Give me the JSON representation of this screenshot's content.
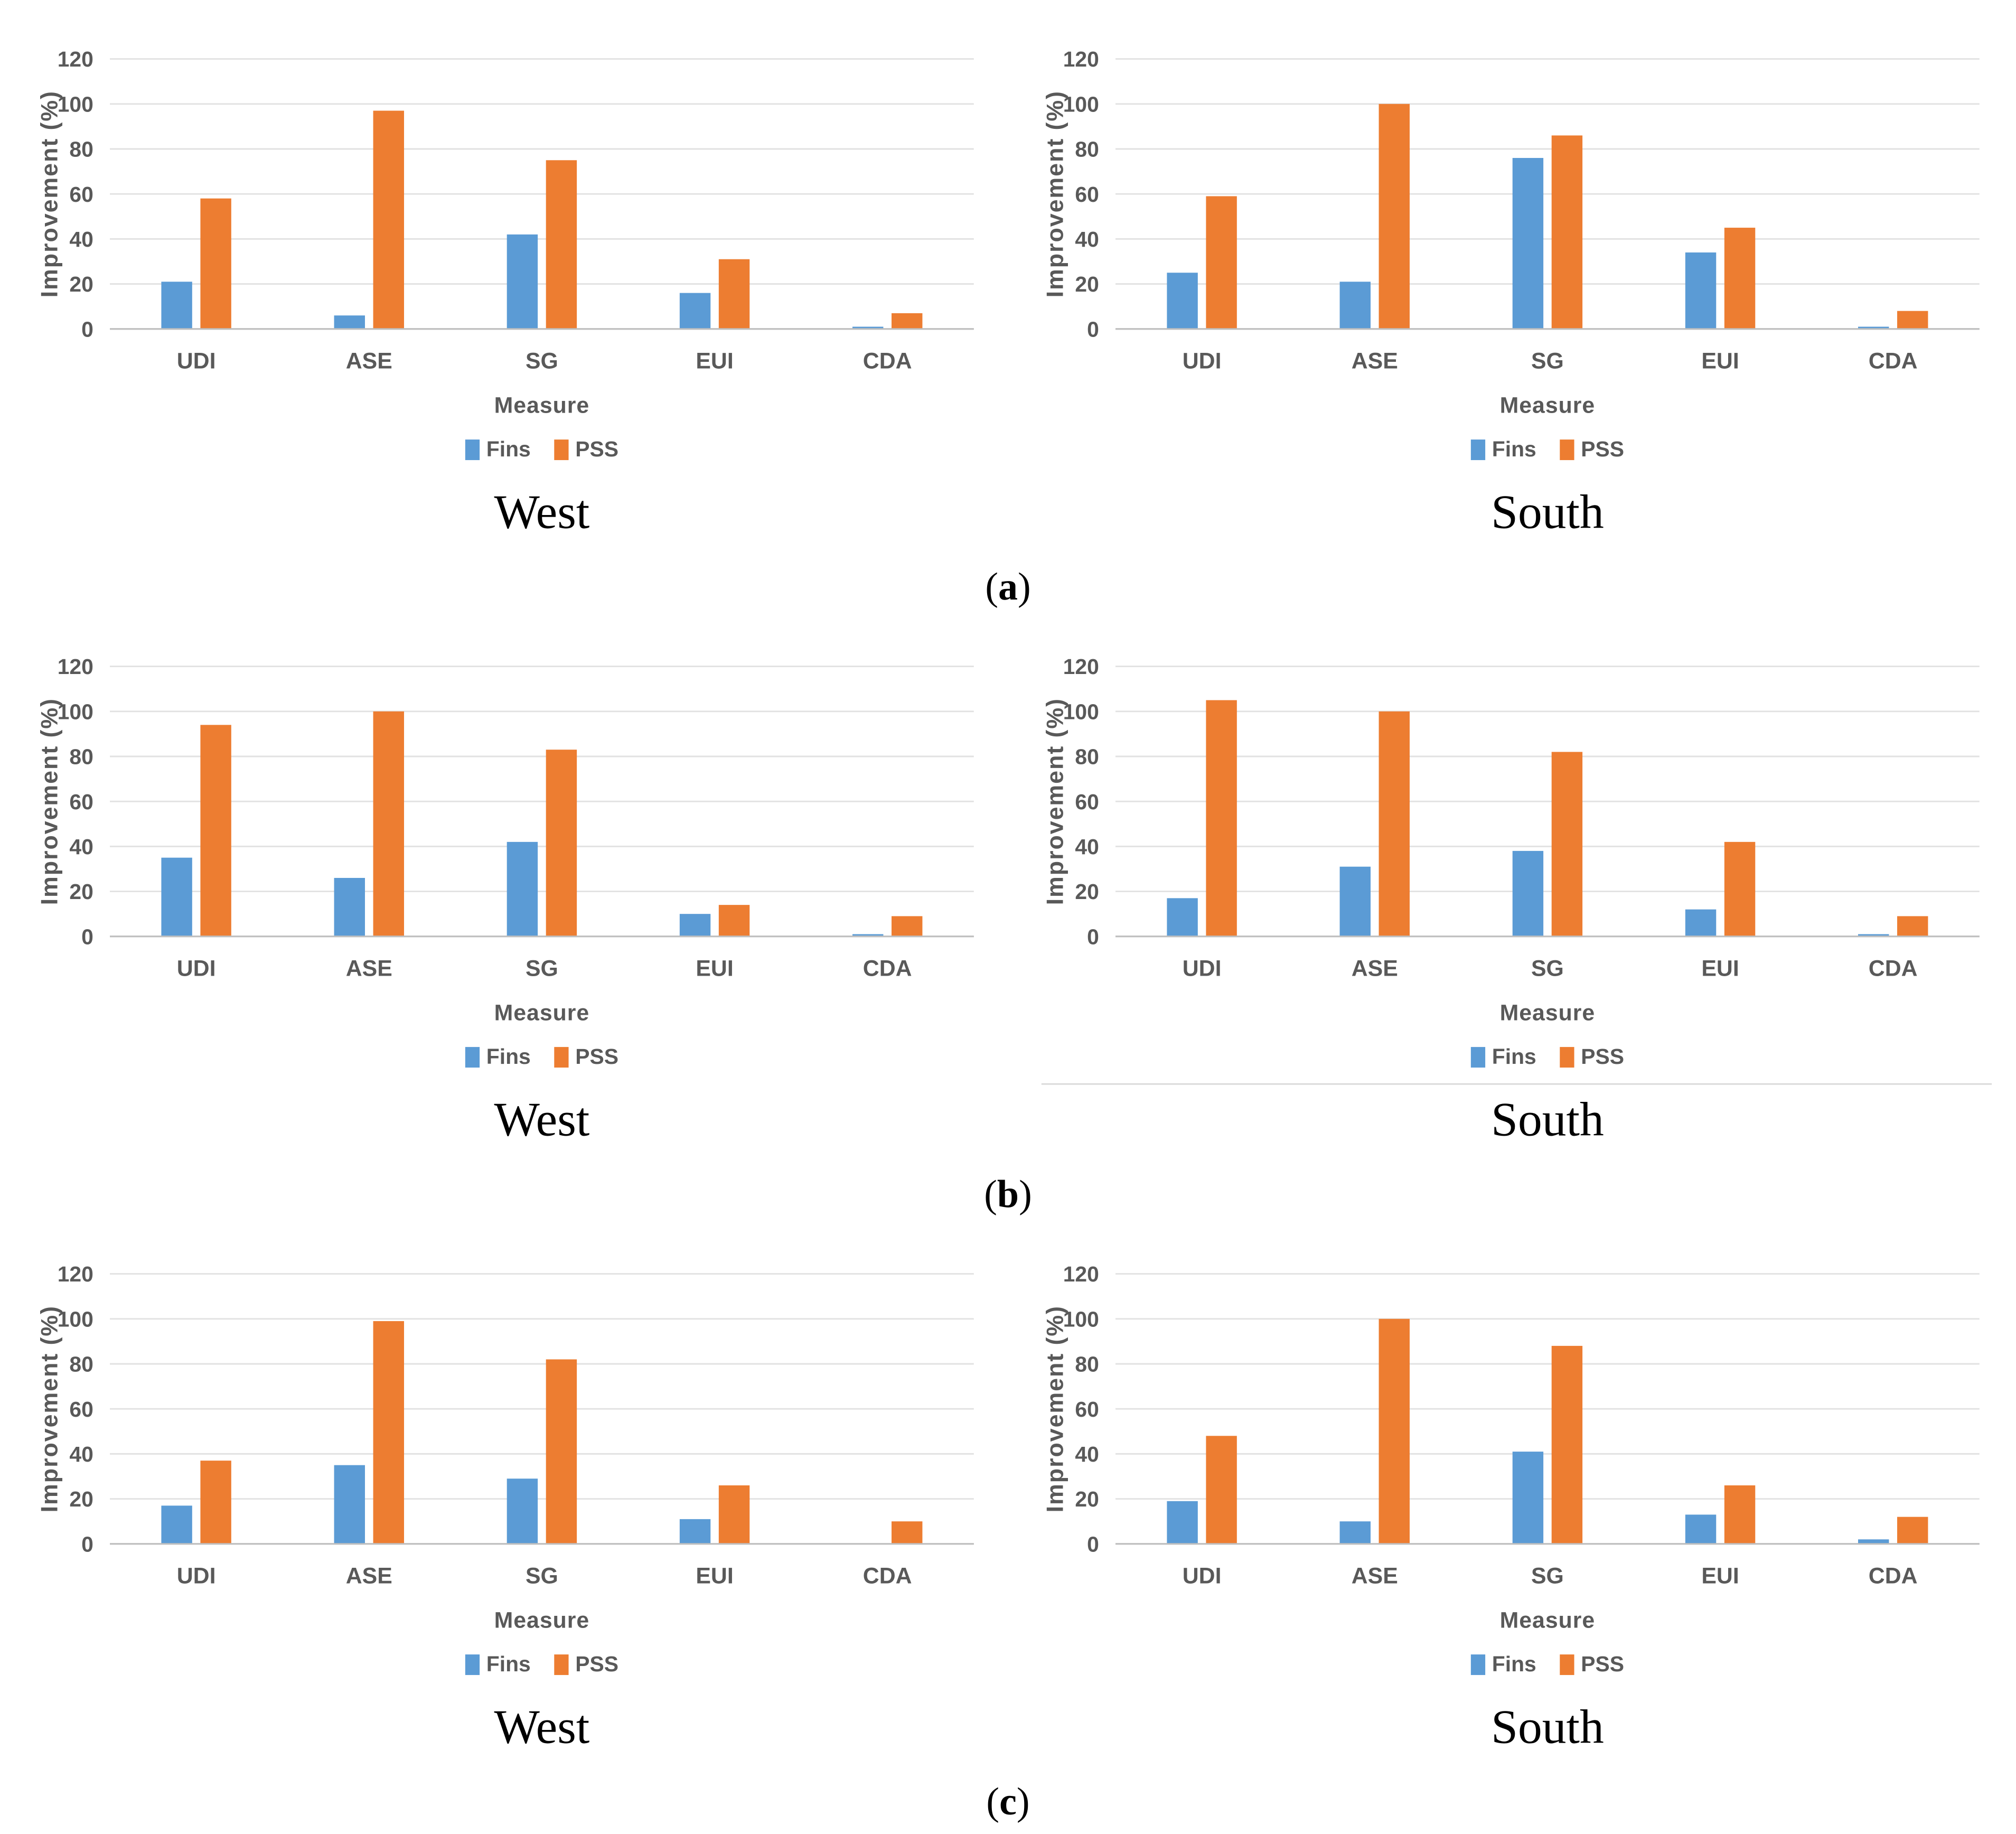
{
  "figure": {
    "description": "Improvement (%) of Fins vs PSS shading systems for West and South orientations, panels (a), (b), (c)"
  },
  "axis": {
    "ylabel": "Improvement (%)",
    "xlabel": "Measure",
    "yticks": [
      0,
      20,
      40,
      60,
      80,
      100,
      120
    ]
  },
  "legend": {
    "items": [
      {
        "label": "Fins",
        "color": "#5B9BD5"
      },
      {
        "label": "PSS",
        "color": "#ED7D31"
      }
    ],
    "position": "bottom"
  },
  "panels": [
    {
      "open": "(",
      "letter": "a",
      "close": ")"
    },
    {
      "open": "(",
      "letter": "b",
      "close": ")"
    },
    {
      "open": "(",
      "letter": "c",
      "close": ")"
    }
  ],
  "style": {
    "gridline_color": "#E2E2E2",
    "baseline_color": "#BFBFBF",
    "label_color": "#595959",
    "border_color": "#D9D9D9"
  },
  "chart_data": [
    {
      "type": "bar",
      "panel": "a",
      "title": "West",
      "categories": [
        "UDI",
        "ASE",
        "SG",
        "EUI",
        "CDA"
      ],
      "series": [
        {
          "name": "Fins",
          "values": [
            21,
            6,
            42,
            16,
            1
          ]
        },
        {
          "name": "PSS",
          "values": [
            58,
            97,
            75,
            31,
            7
          ]
        }
      ],
      "xlabel": "Measure",
      "ylabel": "Improvement (%)",
      "ylim": [
        0,
        120
      ],
      "grid": true,
      "bottom_border": false
    },
    {
      "type": "bar",
      "panel": "a",
      "title": "South",
      "categories": [
        "UDI",
        "ASE",
        "SG",
        "EUI",
        "CDA"
      ],
      "series": [
        {
          "name": "Fins",
          "values": [
            25,
            21,
            76,
            34,
            1
          ]
        },
        {
          "name": "PSS",
          "values": [
            59,
            100,
            86,
            45,
            8
          ]
        }
      ],
      "xlabel": "Measure",
      "ylabel": "Improvement (%)",
      "ylim": [
        0,
        120
      ],
      "grid": true,
      "bottom_border": false
    },
    {
      "type": "bar",
      "panel": "b",
      "title": "West",
      "categories": [
        "UDI",
        "ASE",
        "SG",
        "EUI",
        "CDA"
      ],
      "series": [
        {
          "name": "Fins",
          "values": [
            35,
            26,
            42,
            10,
            1
          ]
        },
        {
          "name": "PSS",
          "values": [
            94,
            100,
            83,
            14,
            9
          ]
        }
      ],
      "xlabel": "Measure",
      "ylabel": "Improvement (%)",
      "ylim": [
        0,
        120
      ],
      "grid": true,
      "bottom_border": false
    },
    {
      "type": "bar",
      "panel": "b",
      "title": "South",
      "categories": [
        "UDI",
        "ASE",
        "SG",
        "EUI",
        "CDA"
      ],
      "series": [
        {
          "name": "Fins",
          "values": [
            17,
            31,
            38,
            12,
            1
          ]
        },
        {
          "name": "PSS",
          "values": [
            105,
            100,
            82,
            42,
            9
          ]
        }
      ],
      "xlabel": "Measure",
      "ylabel": "Improvement (%)",
      "ylim": [
        0,
        120
      ],
      "grid": true,
      "bottom_border": true
    },
    {
      "type": "bar",
      "panel": "c",
      "title": "West",
      "categories": [
        "UDI",
        "ASE",
        "SG",
        "EUI",
        "CDA"
      ],
      "series": [
        {
          "name": "Fins",
          "values": [
            17,
            35,
            29,
            11,
            0
          ]
        },
        {
          "name": "PSS",
          "values": [
            37,
            99,
            82,
            26,
            10
          ]
        }
      ],
      "xlabel": "Measure",
      "ylabel": "Improvement (%)",
      "ylim": [
        0,
        120
      ],
      "grid": true,
      "bottom_border": false
    },
    {
      "type": "bar",
      "panel": "c",
      "title": "South",
      "categories": [
        "UDI",
        "ASE",
        "SG",
        "EUI",
        "CDA"
      ],
      "series": [
        {
          "name": "Fins",
          "values": [
            19,
            10,
            41,
            13,
            2
          ]
        },
        {
          "name": "PSS",
          "values": [
            48,
            100,
            88,
            26,
            12
          ]
        }
      ],
      "xlabel": "Measure",
      "ylabel": "Improvement (%)",
      "ylim": [
        0,
        120
      ],
      "grid": true,
      "bottom_border": false
    }
  ]
}
